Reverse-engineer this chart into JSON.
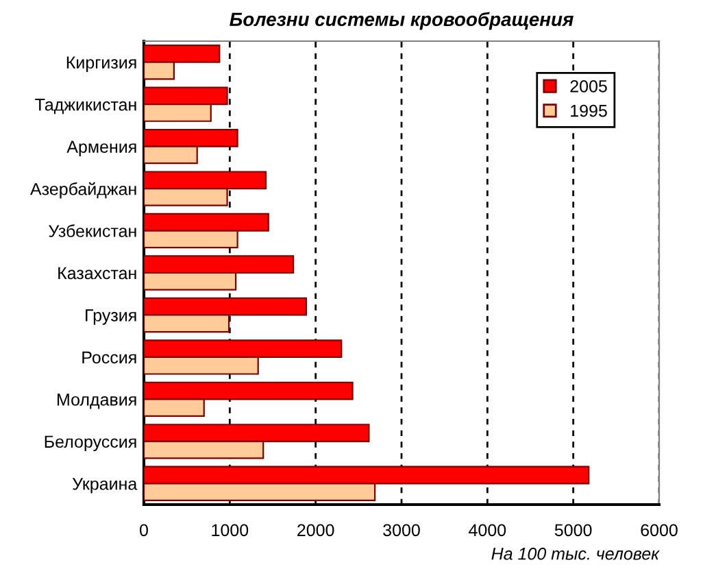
{
  "chart_data": {
    "type": "bar",
    "orientation": "horizontal",
    "title": "Болезни системы кровообращения",
    "xlabel": "На 100 тыс. человек",
    "categories": [
      "Киргизия",
      "Таджикистан",
      "Армения",
      "Азербайджан",
      "Узбекистан",
      "Казахстан",
      "Грузия",
      "Россия",
      "Молдавия",
      "Белоруссия",
      "Украина"
    ],
    "series": [
      {
        "name": "2005",
        "color": "#ff0000",
        "values": [
          880,
          970,
          1090,
          1420,
          1450,
          1740,
          1890,
          2300,
          2430,
          2620,
          5180
        ]
      },
      {
        "name": "1995",
        "color": "#ffcc99",
        "values": [
          350,
          780,
          620,
          970,
          1090,
          1070,
          990,
          1330,
          700,
          1390,
          2690
        ]
      }
    ],
    "xlim": [
      0,
      6000
    ],
    "xticks": [
      0,
      1000,
      2000,
      3000,
      4000,
      5000,
      6000
    ],
    "grid": "x",
    "legend": "top right"
  }
}
